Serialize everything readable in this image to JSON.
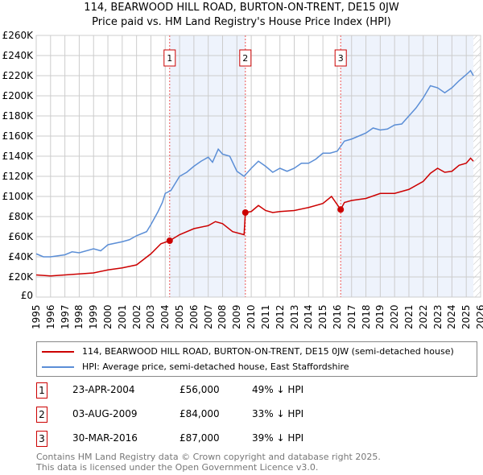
{
  "chart_data": {
    "type": "line",
    "title": "114, BEARWOOD HILL ROAD, BURTON-ON-TRENT, DE15 0JW",
    "subtitle": "Price paid vs. HM Land Registry's House Price Index (HPI)",
    "xlim": [
      1995,
      2026
    ],
    "ylim": [
      0,
      260000
    ],
    "yticks": [
      "£0",
      "£20K",
      "£40K",
      "£60K",
      "£80K",
      "£100K",
      "£120K",
      "£140K",
      "£160K",
      "£180K",
      "£200K",
      "£220K",
      "£240K",
      "£260K"
    ],
    "xticks": [
      "1995",
      "1996",
      "1997",
      "1998",
      "1999",
      "2000",
      "2001",
      "2002",
      "2003",
      "2004",
      "2005",
      "2006",
      "2007",
      "2008",
      "2009",
      "2010",
      "2011",
      "2012",
      "2013",
      "2014",
      "2015",
      "2016",
      "2017",
      "2018",
      "2019",
      "2020",
      "2021",
      "2022",
      "2023",
      "2024",
      "2025",
      "2026"
    ],
    "series": [
      {
        "name": "114, BEARWOOD HILL ROAD, BURTON-ON-TRENT, DE15 0JW (semi-detached house)",
        "color": "#cc0000",
        "x": [
          1995,
          1996,
          1997,
          1998,
          1999,
          2000,
          2001,
          2002,
          2003,
          2003.7,
          2004.31,
          2005,
          2006,
          2007,
          2007.5,
          2008,
          2008.7,
          2009.5,
          2009.59,
          2010,
          2010.5,
          2011,
          2011.5,
          2012,
          2013,
          2014,
          2015,
          2015.6,
          2016.24,
          2016.5,
          2017,
          2018,
          2019,
          2020,
          2021,
          2022,
          2022.5,
          2023,
          2023.5,
          2024,
          2024.5,
          2025,
          2025.3,
          2025.5
        ],
        "y": [
          22,
          21,
          22,
          23,
          24,
          27,
          29,
          32,
          43,
          53,
          56,
          62,
          68,
          71,
          75,
          73,
          65,
          62,
          84,
          85,
          91,
          86,
          84,
          85,
          86,
          89,
          93,
          100,
          87,
          94,
          96,
          98,
          103,
          103,
          107,
          115,
          123,
          128,
          124,
          125,
          131,
          133,
          138,
          135
        ]
      },
      {
        "name": "HPI: Average price, semi-detached house, East Staffordshire",
        "color": "#5b8ed6",
        "x": [
          1995,
          1995.5,
          1996,
          1997,
          1997.5,
          1998,
          1999,
          1999.5,
          2000,
          2001,
          2001.5,
          2002,
          2002.7,
          2003,
          2003.5,
          2003.8,
          2004,
          2004.4,
          2005,
          2005.5,
          2006,
          2006.5,
          2007,
          2007.3,
          2007.7,
          2008,
          2008.5,
          2009,
          2009.5,
          2010,
          2010.5,
          2011,
          2011.5,
          2012,
          2012.5,
          2013,
          2013.5,
          2014,
          2014.5,
          2015,
          2015.5,
          2016,
          2016.5,
          2017,
          2017.5,
          2018,
          2018.5,
          2019,
          2019.5,
          2020,
          2020.5,
          2021,
          2021.5,
          2022,
          2022.5,
          2023,
          2023.5,
          2024,
          2024.5,
          2025,
          2025.3,
          2025.5
        ],
        "y": [
          43,
          40,
          40,
          42,
          45,
          44,
          48,
          46,
          52,
          55,
          57,
          61,
          65,
          72,
          85,
          94,
          103,
          106,
          120,
          124,
          130,
          135,
          139,
          134,
          147,
          142,
          140,
          125,
          120,
          128,
          135,
          130,
          124,
          128,
          125,
          128,
          133,
          133,
          137,
          143,
          143,
          145,
          155,
          157,
          160,
          163,
          168,
          166,
          167,
          171,
          172,
          180,
          188,
          198,
          210,
          208,
          203,
          208,
          215,
          221,
          225,
          220
        ]
      }
    ],
    "sales": [
      {
        "label": "1",
        "x": 2004.31,
        "price": 56000,
        "date": "23-APR-2004",
        "price_text": "£56,000",
        "delta": "49% ↓ HPI"
      },
      {
        "label": "2",
        "x": 2009.59,
        "price": 84000,
        "date": "03-AUG-2009",
        "price_text": "£84,000",
        "delta": "33% ↓ HPI"
      },
      {
        "label": "3",
        "x": 2016.24,
        "price": 87000,
        "date": "30-MAR-2016",
        "price_text": "£87,000",
        "delta": "39% ↓ HPI"
      }
    ],
    "shaded": [
      [
        2004.31,
        2009.59
      ],
      [
        2016.24,
        2025.5
      ]
    ],
    "hatched_from": 2025.5
  },
  "footer": {
    "line1": "Contains HM Land Registry data © Crown copyright and database right 2025.",
    "line2": "This data is licensed under the Open Government Licence v3.0."
  }
}
